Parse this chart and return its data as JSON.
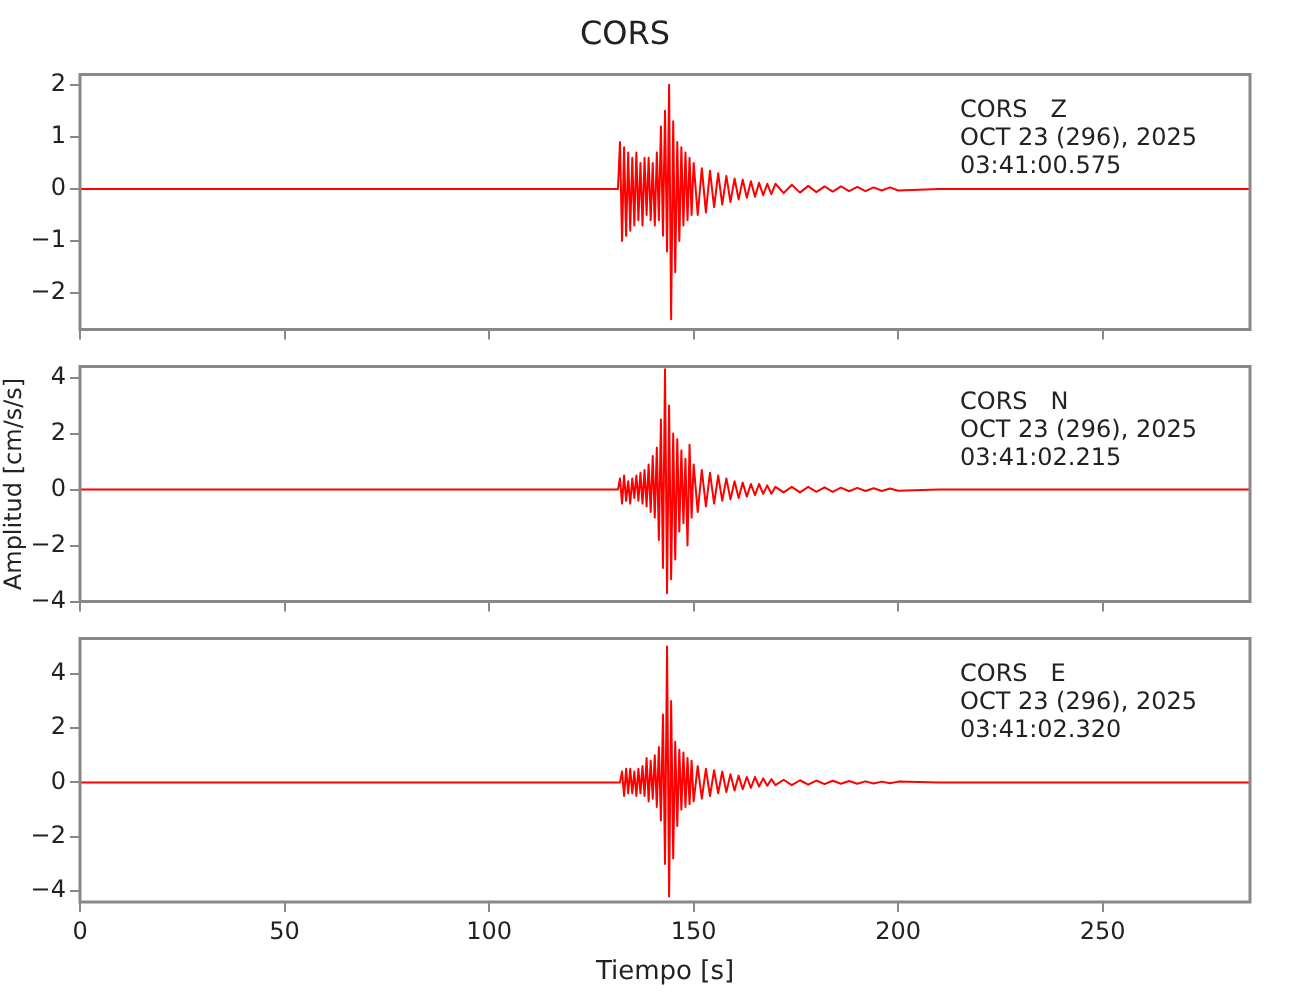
{
  "chart_data": [
    {
      "type": "line",
      "title": "CORS",
      "annotations": [
        "CORS   Z",
        "OCT 23 (296), 2025",
        "03:41:00.575"
      ],
      "xlim": [
        0,
        286
      ],
      "xticks": [
        0,
        50,
        100,
        150,
        200,
        250
      ],
      "ylim": [
        -2.7,
        2.2
      ],
      "yticks": [
        -2,
        -1,
        0,
        1,
        2
      ],
      "tick_labels": "y",
      "marker": "none",
      "x": [
        0,
        60,
        120,
        131.5,
        132,
        132.5,
        133,
        133.5,
        134,
        134.5,
        135,
        135.5,
        136,
        136.5,
        137,
        137.5,
        138,
        138.5,
        139,
        139.5,
        140,
        140.5,
        141,
        141.5,
        142,
        142.5,
        143,
        143.5,
        144,
        144.5,
        145,
        145.5,
        146,
        146.5,
        147,
        147.5,
        148,
        148.5,
        149,
        149.5,
        150,
        151,
        152,
        153,
        154,
        155,
        156,
        157,
        158,
        159,
        160,
        161,
        162,
        163,
        164,
        165,
        166,
        167,
        168,
        169,
        170,
        172,
        174,
        176,
        178,
        180,
        182,
        184,
        186,
        188,
        190,
        192,
        194,
        196,
        198,
        200,
        210,
        230,
        260,
        286
      ],
      "series": [
        {
          "color": "#ff0000",
          "values": [
            0,
            0,
            0,
            0,
            0.9,
            -1.0,
            0.8,
            -0.9,
            0.7,
            -0.8,
            0.6,
            -0.7,
            0.7,
            -0.6,
            0.5,
            -0.7,
            0.6,
            -0.5,
            0.6,
            -0.6,
            0.5,
            -0.7,
            0.7,
            -0.6,
            1.2,
            -0.9,
            1.5,
            -1.2,
            2.0,
            -2.5,
            1.3,
            -1.6,
            0.9,
            -1.0,
            0.8,
            -0.7,
            0.7,
            -0.6,
            0.6,
            -0.5,
            0.5,
            -0.5,
            0.4,
            -0.45,
            0.35,
            -0.35,
            0.3,
            -0.3,
            0.25,
            -0.25,
            0.2,
            -0.2,
            0.18,
            -0.17,
            0.15,
            -0.15,
            0.12,
            -0.12,
            0.1,
            -0.1,
            0.1,
            -0.08,
            0.08,
            -0.07,
            0.06,
            -0.06,
            0.05,
            -0.05,
            0.05,
            -0.04,
            0.04,
            -0.04,
            0.03,
            -0.03,
            0.03,
            -0.03,
            0,
            0,
            0,
            0
          ]
        }
      ]
    },
    {
      "type": "line",
      "ylabel": "Amplitud [cm/s/s]",
      "annotations": [
        "CORS   N",
        "OCT 23 (296), 2025",
        "03:41:02.215"
      ],
      "xlim": [
        0,
        286
      ],
      "xticks": [
        0,
        50,
        100,
        150,
        200,
        250
      ],
      "ylim": [
        -4,
        4.4
      ],
      "yticks": [
        -4,
        -2,
        0,
        2,
        4
      ],
      "tick_labels": "y",
      "marker": "none",
      "x": [
        0,
        60,
        120,
        131.5,
        132,
        132.5,
        133,
        133.5,
        134,
        134.5,
        135,
        135.5,
        136,
        136.5,
        137,
        137.5,
        138,
        138.5,
        139,
        139.5,
        140,
        140.5,
        141,
        141.5,
        142,
        142.5,
        143,
        143.5,
        144,
        144.5,
        145,
        145.5,
        146,
        146.5,
        147,
        147.5,
        148,
        148.5,
        149,
        149.5,
        150,
        151,
        152,
        153,
        154,
        155,
        156,
        157,
        158,
        159,
        160,
        161,
        162,
        163,
        164,
        165,
        166,
        167,
        168,
        169,
        170,
        172,
        174,
        176,
        178,
        180,
        182,
        184,
        186,
        188,
        190,
        192,
        194,
        196,
        198,
        200,
        210,
        230,
        260,
        286
      ],
      "series": [
        {
          "color": "#ff0000",
          "values": [
            0,
            0,
            0,
            0,
            0.4,
            -0.5,
            0.5,
            -0.4,
            0.3,
            -0.5,
            0.4,
            -0.3,
            0.5,
            -0.4,
            0.6,
            -0.5,
            0.7,
            -0.6,
            0.9,
            -0.8,
            1.2,
            -1.0,
            1.5,
            -1.8,
            2.5,
            -2.8,
            4.3,
            -3.7,
            3.0,
            -3.2,
            2.0,
            -2.5,
            1.8,
            -1.5,
            1.4,
            -1.2,
            1.1,
            -2.0,
            1.6,
            -1.0,
            0.9,
            -0.8,
            0.7,
            -0.6,
            0.6,
            -0.5,
            0.5,
            -0.4,
            0.4,
            -0.35,
            0.3,
            -0.3,
            0.25,
            -0.25,
            0.2,
            -0.2,
            0.2,
            -0.15,
            0.15,
            -0.15,
            0.1,
            -0.1,
            0.1,
            -0.1,
            0.1,
            -0.08,
            0.08,
            -0.08,
            0.07,
            -0.06,
            0.06,
            -0.05,
            0.05,
            -0.05,
            0.04,
            -0.04,
            0,
            0,
            0,
            0
          ]
        }
      ]
    },
    {
      "type": "line",
      "xlabel": "Tiempo [s]",
      "annotations": [
        "CORS   E",
        "OCT 23 (296), 2025",
        "03:41:02.320"
      ],
      "xlim": [
        0,
        286
      ],
      "xticks": [
        0,
        50,
        100,
        150,
        200,
        250
      ],
      "ylim": [
        -4.4,
        5.3
      ],
      "yticks": [
        -4,
        -2,
        0,
        2,
        4
      ],
      "marker": "none",
      "x": [
        0,
        60,
        120,
        131.5,
        132,
        132.5,
        133,
        133.5,
        134,
        134.5,
        135,
        135.5,
        136,
        136.5,
        137,
        137.5,
        138,
        138.5,
        139,
        139.5,
        140,
        140.5,
        141,
        141.5,
        142,
        142.5,
        143,
        143.5,
        144,
        144.5,
        145,
        145.5,
        146,
        146.5,
        147,
        147.5,
        148,
        148.5,
        149,
        149.5,
        150,
        151,
        152,
        153,
        154,
        155,
        156,
        157,
        158,
        159,
        160,
        161,
        162,
        163,
        164,
        165,
        166,
        167,
        168,
        169,
        170,
        172,
        174,
        176,
        178,
        180,
        182,
        184,
        186,
        188,
        190,
        192,
        194,
        196,
        198,
        200,
        210,
        230,
        260,
        286
      ],
      "series": [
        {
          "color": "#ff0000",
          "values": [
            0,
            0,
            0,
            0,
            0,
            0.4,
            -0.5,
            0.5,
            -0.4,
            0.5,
            -0.4,
            0.4,
            -0.5,
            0.5,
            -0.4,
            0.6,
            -0.5,
            0.9,
            -0.7,
            0.8,
            -0.6,
            1.0,
            -0.9,
            1.3,
            -1.4,
            2.5,
            -3.0,
            5.0,
            -4.2,
            3.0,
            -2.8,
            1.5,
            -1.6,
            1.2,
            -1.0,
            1.1,
            -0.9,
            0.9,
            -0.8,
            0.8,
            -0.7,
            0.6,
            -0.6,
            0.5,
            -0.5,
            0.45,
            -0.4,
            0.4,
            -0.35,
            0.3,
            -0.3,
            0.25,
            -0.25,
            0.2,
            -0.2,
            0.2,
            -0.15,
            0.15,
            -0.12,
            0.12,
            -0.1,
            0.1,
            -0.1,
            0.08,
            -0.08,
            0.07,
            -0.06,
            0.06,
            -0.05,
            0.05,
            -0.05,
            0.04,
            -0.04,
            0.03,
            -0.03,
            0.03,
            0,
            0,
            0,
            0
          ]
        }
      ]
    }
  ]
}
